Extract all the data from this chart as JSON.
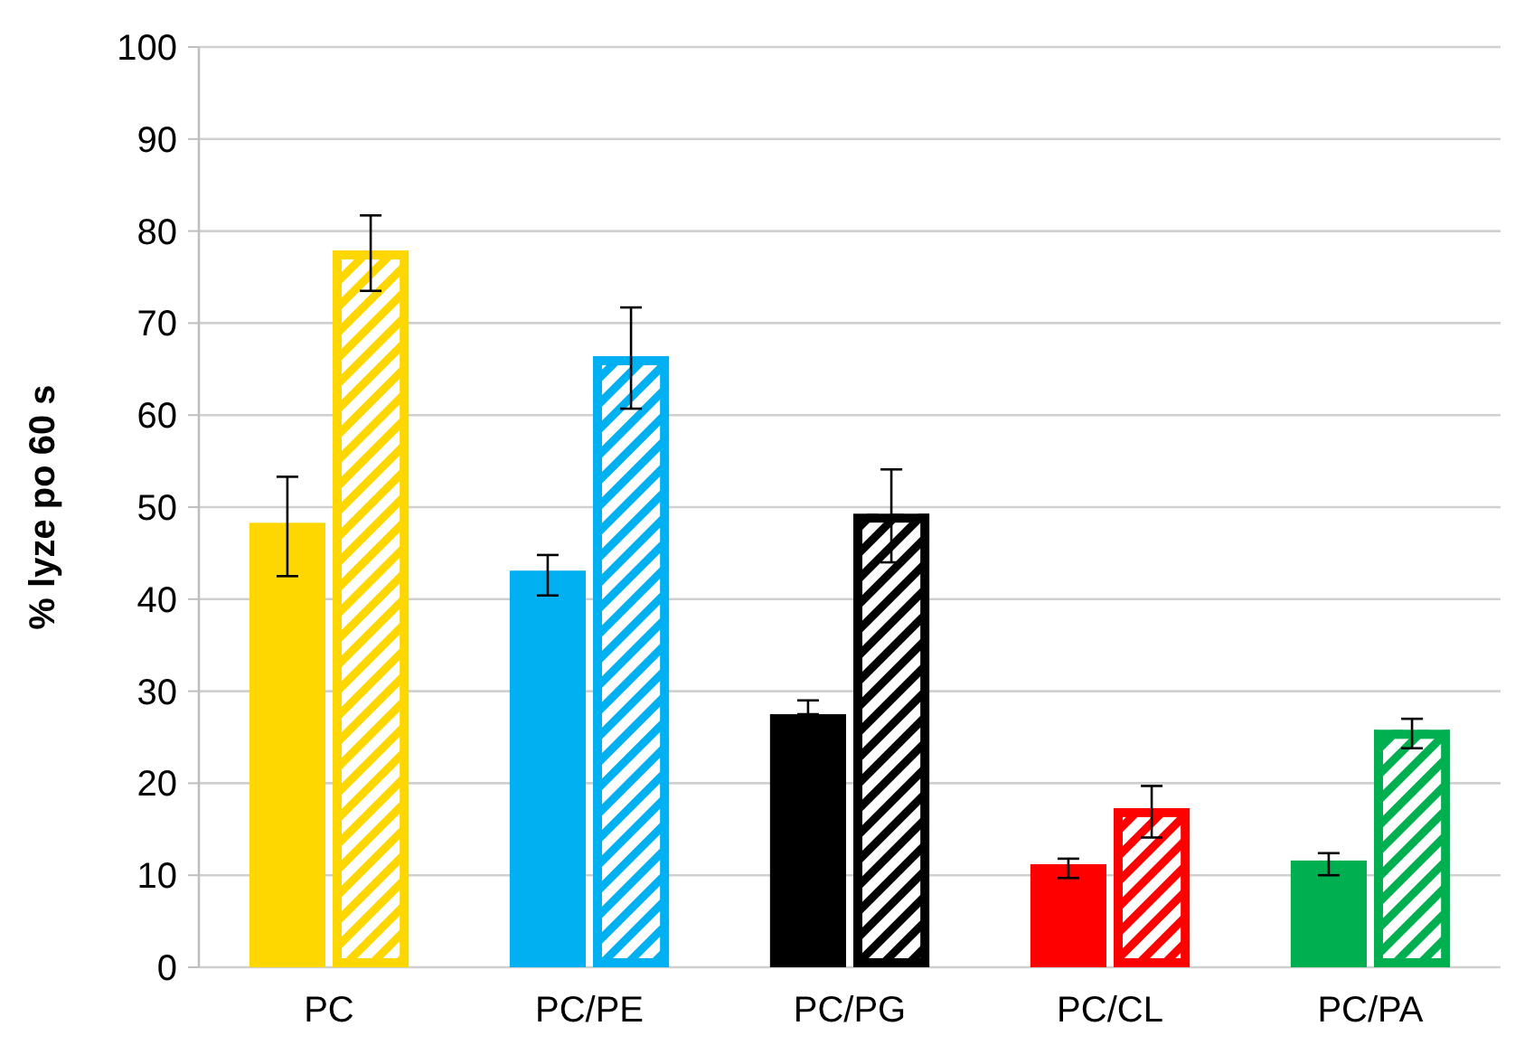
{
  "chart_data": {
    "type": "bar",
    "ylabel": "% lyze po 60 s",
    "categories": [
      "PC",
      "PC/PE",
      "PC/PG",
      "PC/CL",
      "PC/PA"
    ],
    "series": [
      {
        "colors": [
          "#ffd700",
          "#00b0f0",
          "#000000",
          "#ff0000",
          "#00b050"
        ],
        "values": [
          48.3,
          43.1,
          27.5,
          11.2,
          11.6
        ],
        "errors": [
          [
            42.5,
            53.3
          ],
          [
            40.4,
            44.8
          ],
          [
            27.5,
            29
          ],
          [
            9.7,
            11.8
          ],
          [
            10,
            12.4
          ]
        ]
      },
      {
        "colors": [
          "#ffd700",
          "#00b0f0",
          "#000000",
          "#ff0000",
          "#00b050"
        ],
        "values": [
          77.9,
          66.4,
          49.3,
          17.3,
          25.8
        ],
        "errors": [
          [
            73.5,
            81.7
          ],
          [
            60.7,
            71.7
          ],
          [
            44,
            54.1
          ],
          [
            14.1,
            19.7
          ],
          [
            23.8,
            27
          ]
        ]
      }
    ],
    "ylim": [
      0,
      100
    ],
    "yticks": [
      0,
      10,
      20,
      30,
      40,
      50,
      60,
      70,
      80,
      90,
      100
    ],
    "grid": "y"
  }
}
